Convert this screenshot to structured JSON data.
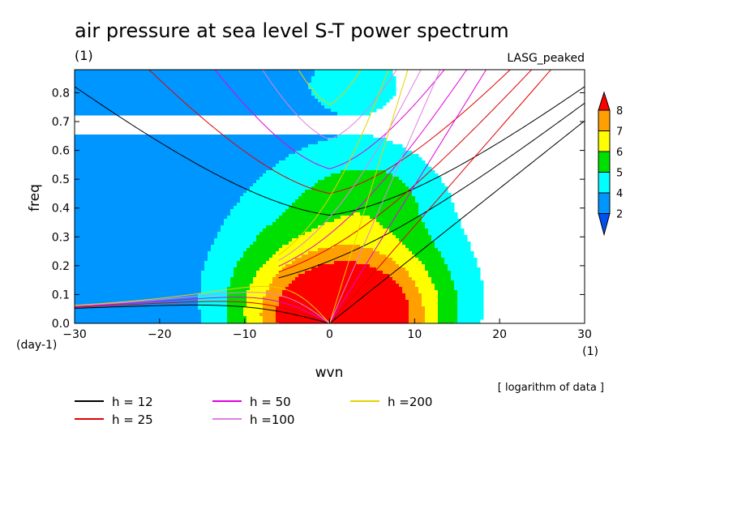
{
  "chart_data": {
    "type": "heatmap",
    "title": "air pressure at sea level S-T power spectrum",
    "subtitle": "(1)",
    "model_label": "LASG_peaked",
    "xlabel": "wvn",
    "ylabel": "freq",
    "x_unit": "(1)",
    "y_unit": "(day-1)",
    "note": "[ logarithm of data ]",
    "xlim": [
      -30,
      30
    ],
    "ylim": [
      0,
      0.88
    ],
    "x_ticks": [
      -30,
      -20,
      -10,
      0,
      10,
      20,
      30
    ],
    "y_ticks": [
      0.0,
      0.1,
      0.2,
      0.3,
      0.4,
      0.5,
      0.6,
      0.7,
      0.8
    ],
    "colorbar": {
      "levels": [
        "2",
        "4",
        "5",
        "6",
        "7",
        "8"
      ],
      "colors": [
        "#0050f0",
        "#0096ff",
        "#00ffff",
        "#00e000",
        "#ffff00",
        "#ffa000",
        "#ff0000"
      ]
    },
    "contour_levels": [
      2,
      4,
      5,
      6,
      7,
      8
    ],
    "dispersion_legend": [
      {
        "label": "h = 12",
        "h": 12,
        "color": "#000000"
      },
      {
        "label": "h = 25",
        "h": 25,
        "color": "#e00000"
      },
      {
        "label": "h = 50",
        "h": 50,
        "color": "#e000e0"
      },
      {
        "label": "h =100",
        "h": 100,
        "color": "#e080e0"
      },
      {
        "label": "h =200",
        "h": 200,
        "color": "#e6d000"
      }
    ]
  }
}
